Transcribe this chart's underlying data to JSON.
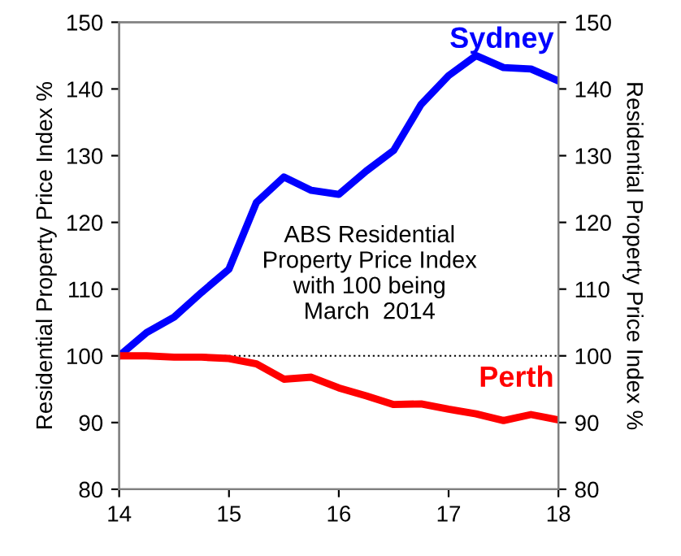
{
  "chart_data": {
    "type": "line",
    "ylabel": "Residential Property Price Index %",
    "y2label": "Residential Property Price Index %",
    "x": [
      14,
      14.25,
      14.5,
      14.75,
      15,
      15.25,
      15.5,
      15.75,
      16,
      16.25,
      16.5,
      16.75,
      17,
      17.25,
      17.5,
      17.75,
      18
    ],
    "series": [
      {
        "name": "Sydney",
        "color": "#0000ff",
        "values": [
          100,
          103.5,
          105.8,
          109.5,
          113,
          123,
          126.8,
          124.8,
          124.2,
          127.7,
          130.8,
          137.7,
          142,
          145,
          143.2,
          143,
          141.2
        ]
      },
      {
        "name": "Perth",
        "color": "#ff0000",
        "values": [
          100,
          100,
          99.8,
          99.8,
          99.6,
          98.8,
          96.5,
          96.8,
          95.2,
          94,
          92.7,
          92.8,
          92,
          91.3,
          90.3,
          91.2,
          90.4
        ]
      }
    ],
    "xlim": [
      14,
      18
    ],
    "xticks": [
      14,
      15,
      16,
      17,
      18
    ],
    "ylim": [
      80,
      150
    ],
    "yticks": [
      80,
      90,
      100,
      110,
      120,
      130,
      140,
      150
    ],
    "y2lim": [
      80,
      150
    ],
    "y2ticks": [
      80,
      90,
      100,
      110,
      120,
      130,
      140,
      150
    ],
    "ref_lines": [
      {
        "axis": "y",
        "value": 100,
        "color": "#000000",
        "line_style": "dotted"
      }
    ],
    "annotations": [
      "ABS Residential\nProperty Price Index\nwith 100 being\nMarch  2014"
    ],
    "grid": false,
    "legend": false,
    "line_style": "solid",
    "marker": "none"
  }
}
